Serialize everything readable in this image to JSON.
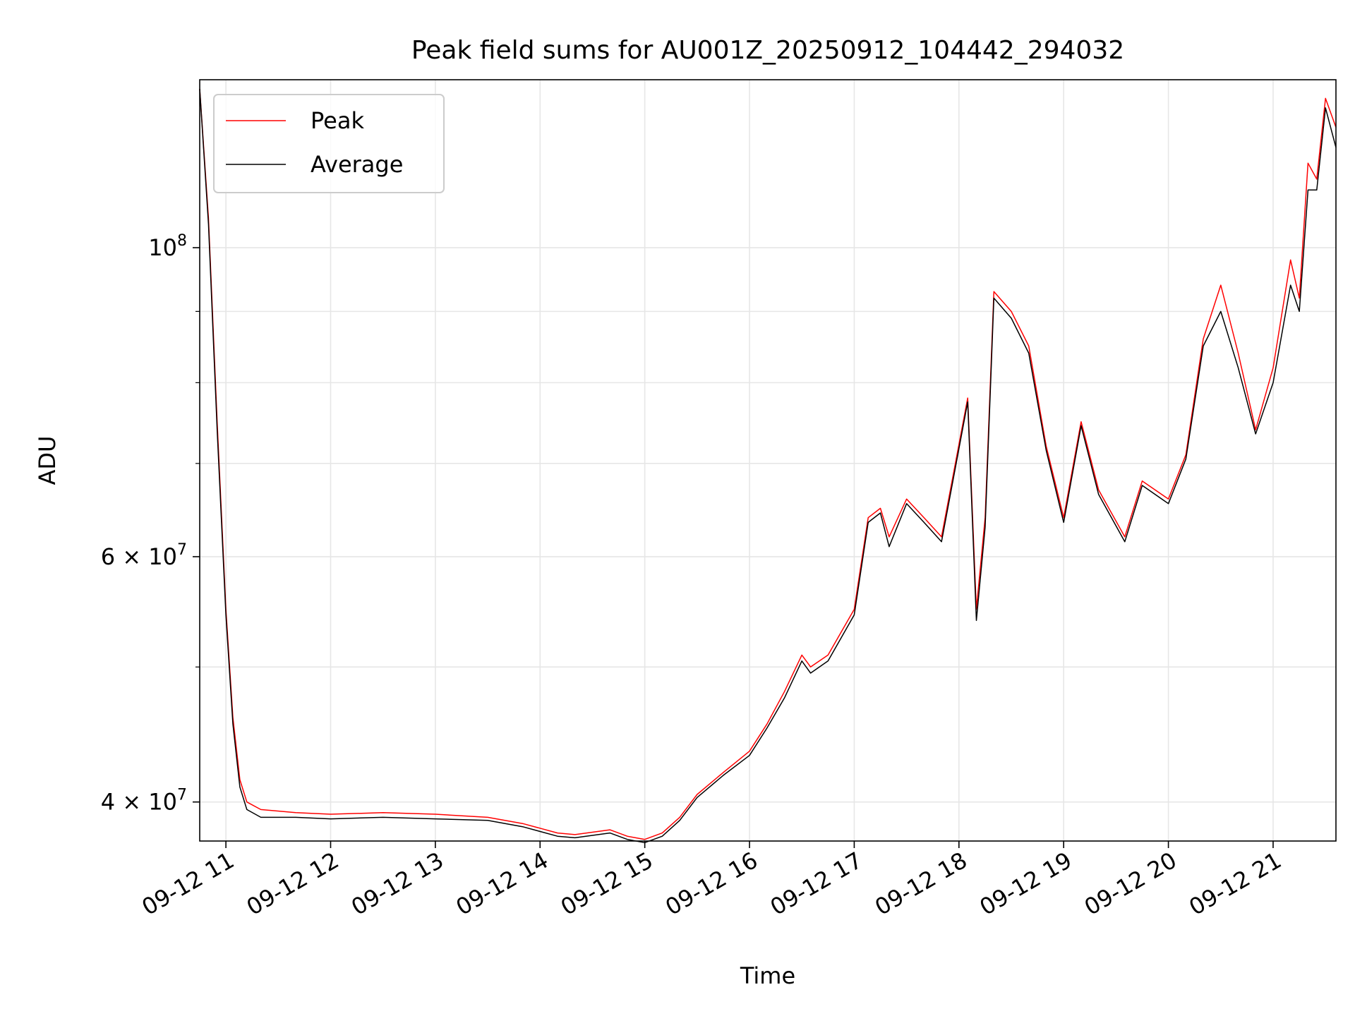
{
  "chart_data": {
    "type": "line",
    "title": "Peak field sums for AU001Z_20250912_104442_294032",
    "xlabel": "Time",
    "ylabel": "ADU",
    "yscale": "log",
    "xlim": [
      "2025-09-12T10:45",
      "2025-09-12T21:36"
    ],
    "ylim": [
      37500000,
      132000000
    ],
    "grid": true,
    "legend_position": "upper-left",
    "x_ticks": [
      {
        "t": "2025-09-12T11:00",
        "label": "09-12 11"
      },
      {
        "t": "2025-09-12T12:00",
        "label": "09-12 12"
      },
      {
        "t": "2025-09-12T13:00",
        "label": "09-12 13"
      },
      {
        "t": "2025-09-12T14:00",
        "label": "09-12 14"
      },
      {
        "t": "2025-09-12T15:00",
        "label": "09-12 15"
      },
      {
        "t": "2025-09-12T16:00",
        "label": "09-12 16"
      },
      {
        "t": "2025-09-12T17:00",
        "label": "09-12 17"
      },
      {
        "t": "2025-09-12T18:00",
        "label": "09-12 18"
      },
      {
        "t": "2025-09-12T19:00",
        "label": "09-12 19"
      },
      {
        "t": "2025-09-12T20:00",
        "label": "09-12 20"
      },
      {
        "t": "2025-09-12T21:00",
        "label": "09-12 21"
      }
    ],
    "y_ticks": [
      {
        "v": 40000000,
        "label": "4 × 10⁷",
        "base": "4 × 10",
        "exp": "7"
      },
      {
        "v": 60000000,
        "label": "6 × 10⁷",
        "base": "6 × 10",
        "exp": "7"
      },
      {
        "v": 100000000,
        "label": "10⁸",
        "base": "10",
        "exp": "8"
      }
    ],
    "y_minor_ticks": [
      50000000,
      70000000,
      80000000,
      90000000
    ],
    "series": [
      {
        "name": "Peak",
        "color": "#ff0000",
        "x": [
          "2025-09-12T10:45",
          "2025-09-12T10:50",
          "2025-09-12T10:55",
          "2025-09-12T11:00",
          "2025-09-12T11:04",
          "2025-09-12T11:08",
          "2025-09-12T11:12",
          "2025-09-12T11:20",
          "2025-09-12T11:40",
          "2025-09-12T12:00",
          "2025-09-12T12:30",
          "2025-09-12T13:00",
          "2025-09-12T13:30",
          "2025-09-12T13:50",
          "2025-09-12T14:10",
          "2025-09-12T14:20",
          "2025-09-12T14:40",
          "2025-09-12T14:50",
          "2025-09-12T15:00",
          "2025-09-12T15:10",
          "2025-09-12T15:20",
          "2025-09-12T15:30",
          "2025-09-12T15:45",
          "2025-09-12T16:00",
          "2025-09-12T16:10",
          "2025-09-12T16:20",
          "2025-09-12T16:30",
          "2025-09-12T16:35",
          "2025-09-12T16:45",
          "2025-09-12T17:00",
          "2025-09-12T17:08",
          "2025-09-12T17:15",
          "2025-09-12T17:20",
          "2025-09-12T17:30",
          "2025-09-12T17:40",
          "2025-09-12T17:50",
          "2025-09-12T18:05",
          "2025-09-12T18:10",
          "2025-09-12T18:15",
          "2025-09-12T18:20",
          "2025-09-12T18:30",
          "2025-09-12T18:40",
          "2025-09-12T18:50",
          "2025-09-12T19:00",
          "2025-09-12T19:10",
          "2025-09-12T19:20",
          "2025-09-12T19:35",
          "2025-09-12T19:45",
          "2025-09-12T20:00",
          "2025-09-12T20:10",
          "2025-09-12T20:20",
          "2025-09-12T20:30",
          "2025-09-12T20:40",
          "2025-09-12T20:50",
          "2025-09-12T21:00",
          "2025-09-12T21:10",
          "2025-09-12T21:15",
          "2025-09-12T21:20",
          "2025-09-12T21:25",
          "2025-09-12T21:30",
          "2025-09-12T21:36"
        ],
        "y": [
          130000000,
          105000000,
          75000000,
          55000000,
          46000000,
          41500000,
          40000000,
          39500000,
          39300000,
          39200000,
          39300000,
          39200000,
          39000000,
          38600000,
          38000000,
          37900000,
          38200000,
          37800000,
          37600000,
          38000000,
          39000000,
          40500000,
          42000000,
          43500000,
          45500000,
          48000000,
          51000000,
          50000000,
          51000000,
          55000000,
          64000000,
          65000000,
          62000000,
          66000000,
          64000000,
          62000000,
          78000000,
          55000000,
          64000000,
          93000000,
          90000000,
          85000000,
          72000000,
          64000000,
          75000000,
          67000000,
          62000000,
          68000000,
          66000000,
          71000000,
          86000000,
          94000000,
          84000000,
          74000000,
          82000000,
          98000000,
          92000000,
          115000000,
          112000000,
          128000000,
          122000000
        ]
      },
      {
        "name": "Average",
        "color": "#000000",
        "x": [
          "2025-09-12T10:45",
          "2025-09-12T10:50",
          "2025-09-12T10:55",
          "2025-09-12T11:00",
          "2025-09-12T11:04",
          "2025-09-12T11:08",
          "2025-09-12T11:12",
          "2025-09-12T11:20",
          "2025-09-12T11:40",
          "2025-09-12T12:00",
          "2025-09-12T12:30",
          "2025-09-12T13:00",
          "2025-09-12T13:30",
          "2025-09-12T13:50",
          "2025-09-12T14:10",
          "2025-09-12T14:20",
          "2025-09-12T14:40",
          "2025-09-12T14:50",
          "2025-09-12T15:00",
          "2025-09-12T15:10",
          "2025-09-12T15:20",
          "2025-09-12T15:30",
          "2025-09-12T15:45",
          "2025-09-12T16:00",
          "2025-09-12T16:10",
          "2025-09-12T16:20",
          "2025-09-12T16:30",
          "2025-09-12T16:35",
          "2025-09-12T16:45",
          "2025-09-12T17:00",
          "2025-09-12T17:08",
          "2025-09-12T17:15",
          "2025-09-12T17:20",
          "2025-09-12T17:30",
          "2025-09-12T17:40",
          "2025-09-12T17:50",
          "2025-09-12T18:05",
          "2025-09-12T18:10",
          "2025-09-12T18:15",
          "2025-09-12T18:20",
          "2025-09-12T18:30",
          "2025-09-12T18:40",
          "2025-09-12T18:50",
          "2025-09-12T19:00",
          "2025-09-12T19:10",
          "2025-09-12T19:20",
          "2025-09-12T19:35",
          "2025-09-12T19:45",
          "2025-09-12T20:00",
          "2025-09-12T20:10",
          "2025-09-12T20:20",
          "2025-09-12T20:30",
          "2025-09-12T20:40",
          "2025-09-12T20:50",
          "2025-09-12T21:00",
          "2025-09-12T21:10",
          "2025-09-12T21:15",
          "2025-09-12T21:20",
          "2025-09-12T21:25",
          "2025-09-12T21:30",
          "2025-09-12T21:36"
        ],
        "y": [
          130000000,
          104000000,
          74000000,
          54500000,
          45500000,
          41000000,
          39500000,
          39000000,
          39000000,
          38900000,
          39000000,
          38900000,
          38800000,
          38400000,
          37800000,
          37700000,
          38000000,
          37600000,
          37400000,
          37800000,
          38800000,
          40300000,
          41800000,
          43200000,
          45200000,
          47500000,
          50500000,
          49500000,
          50500000,
          54500000,
          63500000,
          64500000,
          61000000,
          65500000,
          63500000,
          61500000,
          77500000,
          54000000,
          63000000,
          92000000,
          89000000,
          84000000,
          71500000,
          63500000,
          74500000,
          66500000,
          61500000,
          67500000,
          65500000,
          70500000,
          85000000,
          90000000,
          82000000,
          73500000,
          80000000,
          94000000,
          90000000,
          110000000,
          110000000,
          126000000,
          118000000
        ]
      }
    ]
  }
}
